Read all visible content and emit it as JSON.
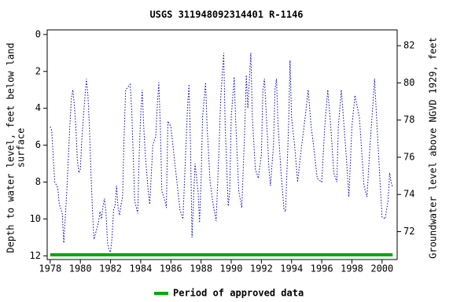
{
  "chart_data": {
    "type": "line",
    "title": "USGS 311948092314401 R-1146",
    "y_label": [
      "Depth to water level, feet below land",
      "surface"
    ],
    "y2_label": "Groundwater level above NGVD 1929, feet",
    "xlim": [
      1977.8,
      2001.0
    ],
    "xticks": [
      1978,
      1980,
      1982,
      1984,
      1986,
      1988,
      1990,
      1992,
      1994,
      1996,
      1998,
      2000
    ],
    "ylim": [
      12.2,
      -0.25
    ],
    "yticks": [
      0,
      2,
      4,
      6,
      8,
      10,
      12
    ],
    "y2lim": [
      70.5,
      82.85
    ],
    "y2ticks": [
      72,
      74,
      76,
      78,
      80,
      82
    ],
    "series": [
      {
        "color": "#0000cc",
        "x": [
          1978.0,
          1978.1,
          1978.3,
          1978.5,
          1978.6,
          1978.8,
          1978.9,
          1979.1,
          1979.3,
          1979.4,
          1979.5,
          1979.6,
          1979.7,
          1979.8,
          1979.9,
          1980.0,
          1980.1,
          1980.2,
          1980.3,
          1980.4,
          1980.5,
          1980.6,
          1980.7,
          1980.8,
          1980.9,
          1981.0,
          1981.1,
          1981.2,
          1981.3,
          1981.4,
          1981.5,
          1981.6,
          1981.7,
          1981.8,
          1981.9,
          1982.0,
          1982.1,
          1982.2,
          1982.3,
          1982.4,
          1982.5,
          1982.6,
          1982.7,
          1982.8,
          1982.9,
          1983.0,
          1983.2,
          1983.3,
          1983.4,
          1983.5,
          1983.6,
          1983.8,
          1983.9,
          1984.0,
          1984.1,
          1984.2,
          1984.3,
          1984.5,
          1984.6,
          1984.8,
          1985.0,
          1985.1,
          1985.2,
          1985.3,
          1985.4,
          1985.6,
          1985.7,
          1985.8,
          1986.0,
          1986.2,
          1986.4,
          1986.6,
          1986.8,
          1987.0,
          1987.1,
          1987.2,
          1987.3,
          1987.4,
          1987.6,
          1987.8,
          1987.9,
          1988.0,
          1988.1,
          1988.3,
          1988.4,
          1988.6,
          1988.8,
          1989.0,
          1989.2,
          1989.3,
          1989.5,
          1989.6,
          1989.8,
          1989.9,
          1990.0,
          1990.2,
          1990.3,
          1990.5,
          1990.7,
          1990.9,
          1991.0,
          1991.1,
          1991.3,
          1991.4,
          1991.6,
          1991.8,
          1992.0,
          1992.1,
          1992.2,
          1992.4,
          1992.5,
          1992.6,
          1992.8,
          1992.9,
          1993.0,
          1993.1,
          1993.3,
          1993.5,
          1993.6,
          1993.8,
          1993.9,
          1994.0,
          1994.2,
          1994.4,
          1994.6,
          1994.9,
          1995.1,
          1995.3,
          1995.5,
          1995.7,
          1996.0,
          1996.2,
          1996.4,
          1996.6,
          1996.8,
          1997.0,
          1997.1,
          1997.3,
          1997.6,
          1997.8,
          1998.0,
          1998.2,
          1998.5,
          1998.8,
          1999.0,
          1999.2,
          1999.4,
          1999.5,
          1999.7,
          1999.9,
          2000.0,
          2000.2,
          2000.4,
          2000.5,
          2000.6,
          2000.7
        ],
        "values": [
          5.0,
          5.2,
          8.0,
          8.3,
          9.2,
          9.7,
          11.3,
          8.5,
          5.0,
          3.5,
          3.0,
          3.8,
          5.0,
          6.8,
          7.5,
          7.3,
          5.6,
          4.5,
          3.4,
          2.4,
          3.3,
          5.0,
          7.5,
          9.5,
          11.1,
          10.8,
          10.5,
          10.2,
          9.6,
          10.0,
          9.3,
          8.9,
          9.7,
          11.3,
          11.7,
          11.8,
          11.0,
          9.5,
          9.3,
          8.2,
          9.4,
          9.8,
          9.2,
          8.8,
          5.5,
          3.0,
          2.8,
          2.7,
          4.0,
          6.5,
          9.0,
          9.7,
          6.5,
          4.3,
          3.0,
          5.0,
          6.5,
          8.5,
          9.2,
          6.0,
          5.5,
          3.8,
          2.6,
          5.0,
          8.5,
          9.0,
          9.4,
          4.7,
          5.0,
          6.5,
          8.0,
          9.5,
          10.0,
          6.0,
          4.0,
          2.7,
          6.0,
          11.0,
          7.0,
          8.5,
          10.2,
          8.0,
          4.5,
          2.6,
          5.0,
          8.0,
          9.2,
          10.1,
          6.0,
          3.5,
          1.0,
          5.0,
          9.3,
          8.5,
          4.5,
          2.3,
          4.8,
          8.5,
          9.4,
          5.0,
          2.2,
          4.0,
          1.0,
          4.5,
          7.3,
          7.8,
          6.5,
          3.0,
          2.4,
          5.5,
          7.3,
          8.2,
          6.0,
          3.0,
          2.4,
          4.8,
          7.5,
          9.5,
          9.6,
          5.0,
          1.4,
          4.5,
          6.0,
          8.0,
          6.5,
          4.5,
          3.0,
          5.0,
          6.3,
          7.8,
          8.0,
          5.0,
          3.0,
          5.0,
          7.5,
          8.0,
          5.0,
          3.0,
          6.3,
          8.8,
          5.0,
          3.3,
          4.5,
          8.2,
          8.8,
          6.0,
          3.7,
          2.4,
          5.5,
          8.5,
          9.9,
          10.0,
          9.0,
          7.5,
          8.0,
          8.3
        ]
      }
    ],
    "approved_period": {
      "label": "Period of approved data",
      "color": "#00aa00",
      "start": 1978.0,
      "end": 2000.7
    }
  }
}
